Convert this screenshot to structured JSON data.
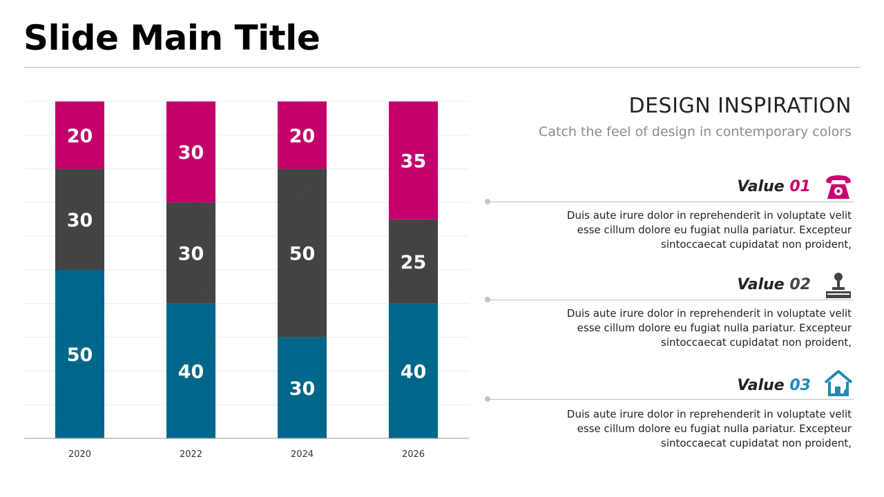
{
  "slide": {
    "title": "Slide Main Title"
  },
  "colors": {
    "pink": "#c8006e",
    "dark": "#454545",
    "blue": "#006a8e",
    "blue_icon": "#1e8ab8"
  },
  "chart_data": {
    "type": "bar",
    "stacked": true,
    "categories": [
      "2020",
      "2022",
      "2024",
      "2026"
    ],
    "series": [
      {
        "values": [
          50,
          40,
          30,
          40
        ],
        "color": "#006a8e"
      },
      {
        "values": [
          30,
          30,
          50,
          25
        ],
        "color": "#454545"
      },
      {
        "values": [
          20,
          30,
          20,
          35
        ],
        "color": "#c8006e"
      }
    ],
    "ylim": [
      0,
      100
    ],
    "grid": true,
    "data_labels": true
  },
  "panel": {
    "heading": "DESIGN INSPIRATION",
    "subheading": "Catch the feel of design in contemporary colors",
    "values": [
      {
        "label": "Value ",
        "number": "01",
        "number_color": "#c8006e",
        "icon": "telephone-icon",
        "icon_color": "#c8006e",
        "lines": [
          "Duis aute irure dolor in reprehenderit in voluptate velit",
          "esse cillum dolore eu fugiat nulla pariatur. Excepteur",
          "sintoccaecat cupidatat non proident,"
        ]
      },
      {
        "label": "Value ",
        "number": "02",
        "number_color": "#454545",
        "icon": "joystick-icon",
        "icon_color": "#454545",
        "lines": [
          "Duis aute irure dolor in reprehenderit in voluptate velit",
          "esse cillum dolore eu fugiat nulla pariatur. Excepteur",
          "sintoccaecat cupidatat non proident,"
        ]
      },
      {
        "label": "Value ",
        "number": "03",
        "number_color": "#1e8ab8",
        "icon": "eco-house-icon",
        "icon_color": "#1e8ab8",
        "lines": [
          "Duis aute irure dolor in reprehenderit in voluptate velit",
          "esse cillum dolore eu fugiat nulla pariatur. Excepteur",
          "sintoccaecat cupidatat non proident,"
        ]
      }
    ]
  }
}
